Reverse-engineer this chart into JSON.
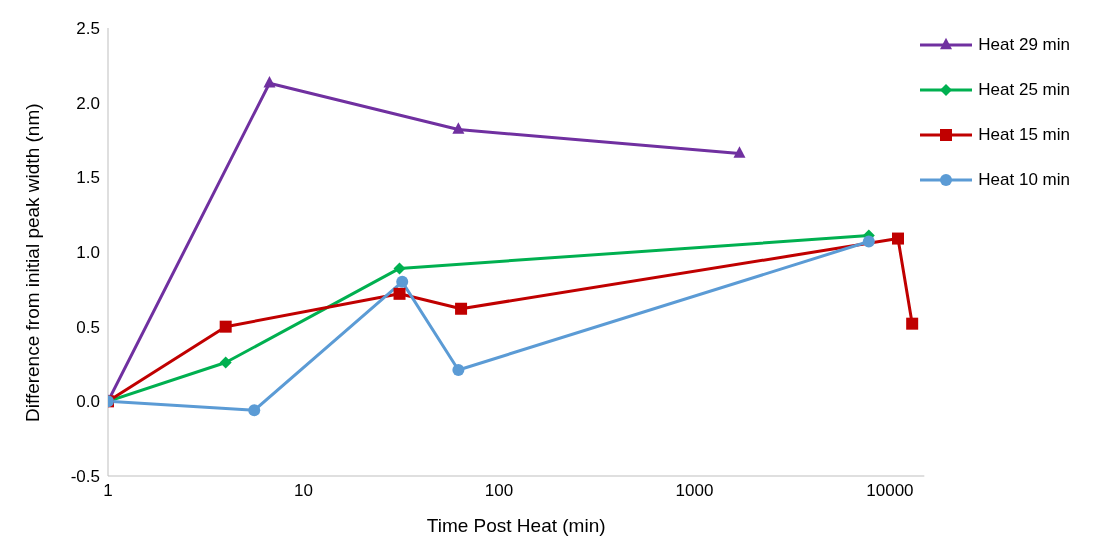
{
  "chart_data": {
    "type": "line",
    "xlabel": "Time Post Heat (min)",
    "ylabel": "Difference from initial peak width (nm)",
    "log": "x",
    "xlim": [
      1,
      15000
    ],
    "xticks": [
      1,
      10,
      100,
      1000,
      10000
    ],
    "ylim": [
      -0.5,
      2.5
    ],
    "yticks": [
      {
        "value": -0.5,
        "label": "-0.5"
      },
      {
        "value": 0,
        "label": "0.0"
      },
      {
        "value": 0.5,
        "label": "0.5"
      },
      {
        "value": 1,
        "label": "1.0"
      },
      {
        "value": 1.5,
        "label": "1.5"
      },
      {
        "value": 2,
        "label": "2.0"
      },
      {
        "value": 2.5,
        "label": "2.5"
      }
    ],
    "grid": false,
    "legend": "top right",
    "line_style": "solid",
    "series": [
      {
        "name": "Heat 29 min",
        "color": "#7030a0",
        "marker": "triangle",
        "x": [
          1,
          6.7,
          62,
          1700
        ],
        "values": [
          0,
          2.13,
          1.82,
          1.66
        ]
      },
      {
        "name": "Heat 25 min",
        "color": "#00b050",
        "marker": "diamond",
        "x": [
          1,
          4,
          31,
          7800
        ],
        "values": [
          0,
          0.26,
          0.89,
          1.11
        ]
      },
      {
        "name": "Heat 15 min",
        "color": "#c00000",
        "marker": "square",
        "x": [
          1,
          4,
          31,
          64,
          11000,
          13000
        ],
        "values": [
          0,
          0.5,
          0.72,
          0.62,
          1.09,
          0.52
        ]
      },
      {
        "name": "Heat 10 min",
        "color": "#5b9bd5",
        "marker": "circle",
        "x": [
          1,
          5.6,
          32,
          62,
          7800
        ],
        "values": [
          0,
          -0.06,
          0.8,
          0.21,
          1.07
        ]
      }
    ]
  }
}
